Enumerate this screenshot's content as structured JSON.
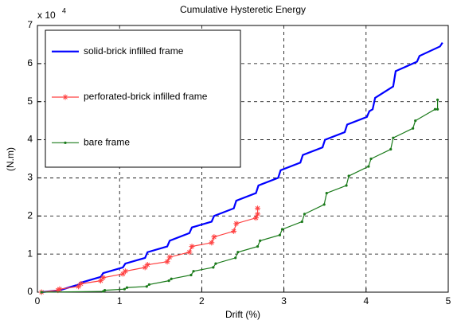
{
  "chart_data": {
    "type": "line",
    "title": "Cumulative Hysteretic Energy",
    "x_label": "Drift (%)",
    "y_label": "(N.m)",
    "y_multiplier_base": "x 10",
    "y_multiplier_exponent": "4",
    "xlim": [
      0,
      5
    ],
    "ylim": [
      0,
      7
    ],
    "xticks": [
      0,
      1,
      2,
      3,
      4,
      5
    ],
    "yticks": [
      0,
      1,
      2,
      3,
      4,
      5,
      6,
      7
    ],
    "grid": true,
    "legend": "upper left",
    "series": [
      {
        "name": "solid-brick infilled frame",
        "color": "#0000ff",
        "marker": "none",
        "x": [
          0.05,
          0.27,
          0.5,
          0.53,
          0.77,
          0.8,
          1.04,
          1.07,
          1.31,
          1.34,
          1.58,
          1.61,
          1.85,
          1.88,
          2.12,
          2.15,
          2.39,
          2.42,
          2.66,
          2.69,
          2.93,
          2.96,
          3.2,
          3.23,
          3.47,
          3.5,
          3.74,
          3.77,
          4.01,
          4.04,
          4.08,
          4.11,
          4.33,
          4.36,
          4.62,
          4.65,
          4.9,
          4.93
        ],
        "values": [
          0,
          0.05,
          0.2,
          0.25,
          0.4,
          0.5,
          0.65,
          0.75,
          0.9,
          1.05,
          1.2,
          1.35,
          1.55,
          1.7,
          1.85,
          2.0,
          2.2,
          2.4,
          2.6,
          2.8,
          3.0,
          3.2,
          3.4,
          3.6,
          3.8,
          4.0,
          4.2,
          4.4,
          4.6,
          4.75,
          4.8,
          5.1,
          5.4,
          5.8,
          6.05,
          6.2,
          6.45,
          6.55
        ]
      },
      {
        "name": "perforated-brick infilled frame",
        "color": "#ff4040",
        "marker": "star",
        "x": [
          0.05,
          0.25,
          0.27,
          0.5,
          0.53,
          0.77,
          0.8,
          1.04,
          1.07,
          1.31,
          1.34,
          1.58,
          1.61,
          1.85,
          1.88,
          2.12,
          2.15,
          2.39,
          2.42,
          2.66,
          2.68,
          2.68
        ],
        "values": [
          0,
          0.05,
          0.08,
          0.15,
          0.22,
          0.3,
          0.38,
          0.48,
          0.55,
          0.65,
          0.72,
          0.8,
          0.92,
          1.05,
          1.2,
          1.3,
          1.45,
          1.6,
          1.8,
          1.95,
          2.05,
          2.2
        ]
      },
      {
        "name": "bare frame",
        "color": "#1a7a1a",
        "marker": "dot",
        "x": [
          0.05,
          0.8,
          0.82,
          1.06,
          1.09,
          1.33,
          1.36,
          1.6,
          1.63,
          1.87,
          1.9,
          2.14,
          2.17,
          2.41,
          2.44,
          2.68,
          2.71,
          2.95,
          2.98,
          3.22,
          3.25,
          3.49,
          3.52,
          3.76,
          3.79,
          4.03,
          4.06,
          4.3,
          4.33,
          4.57,
          4.6,
          4.84,
          4.87,
          4.87
        ],
        "values": [
          0,
          0.02,
          0.05,
          0.08,
          0.12,
          0.15,
          0.2,
          0.3,
          0.35,
          0.45,
          0.55,
          0.65,
          0.75,
          0.9,
          1.05,
          1.2,
          1.35,
          1.5,
          1.65,
          1.85,
          2.05,
          2.3,
          2.6,
          2.8,
          3.05,
          3.3,
          3.5,
          3.75,
          4.05,
          4.3,
          4.5,
          4.8,
          4.8,
          5.05
        ]
      }
    ]
  }
}
